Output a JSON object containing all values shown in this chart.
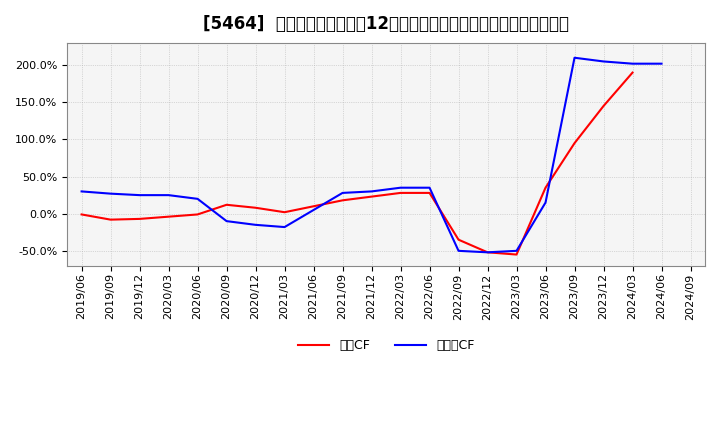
{
  "title": "[5464]  キャッシュフローの12か月移動合計の対前年同期増減率の推移",
  "legend_labels": [
    "営業CF",
    "フリーCF"
  ],
  "line_colors": [
    "#ff0000",
    "#0000ff"
  ],
  "x_labels": [
    "2019/06",
    "2019/09",
    "2019/12",
    "2020/03",
    "2020/06",
    "2020/09",
    "2020/12",
    "2021/03",
    "2021/06",
    "2021/09",
    "2021/12",
    "2022/03",
    "2022/06",
    "2022/09",
    "2022/12",
    "2023/03",
    "2023/06",
    "2023/09",
    "2023/12",
    "2024/03",
    "2024/06",
    "2024/09"
  ],
  "営業CF": [
    -1.0,
    -8.0,
    -7.0,
    -4.0,
    -1.0,
    12.0,
    8.0,
    2.0,
    10.0,
    18.0,
    23.0,
    28.0,
    28.0,
    -35.0,
    -52.0,
    -55.0,
    35.0,
    95.0,
    145.0,
    190.0,
    null,
    null
  ],
  "フリーCF": [
    30.0,
    27.0,
    25.0,
    25.0,
    20.0,
    -10.0,
    -15.0,
    -18.0,
    5.0,
    28.0,
    30.0,
    35.0,
    35.0,
    -50.0,
    -52.0,
    -50.0,
    15.0,
    210.0,
    205.0,
    202.0,
    202.0,
    null
  ],
  "ylim": [
    -70.0,
    230.0
  ],
  "yticks": [
    -50.0,
    0.0,
    50.0,
    100.0,
    150.0,
    200.0
  ],
  "background_color": "#ffffff",
  "plot_bg_color": "#f5f5f5",
  "grid_color": "#aaaaaa",
  "title_fontsize": 12,
  "tick_fontsize": 8,
  "legend_fontsize": 9
}
